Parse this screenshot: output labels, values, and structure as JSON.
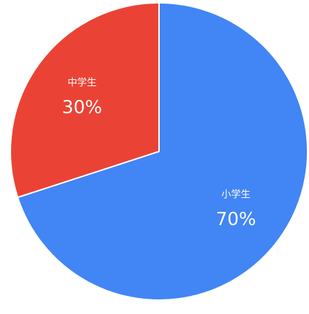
{
  "chart_data": {
    "type": "pie",
    "categories": [
      "小学生",
      "中学生"
    ],
    "values": [
      70,
      30
    ],
    "value_labels": [
      "70%",
      "30%"
    ],
    "colors": [
      "#4285f4",
      "#ea4335"
    ]
  }
}
